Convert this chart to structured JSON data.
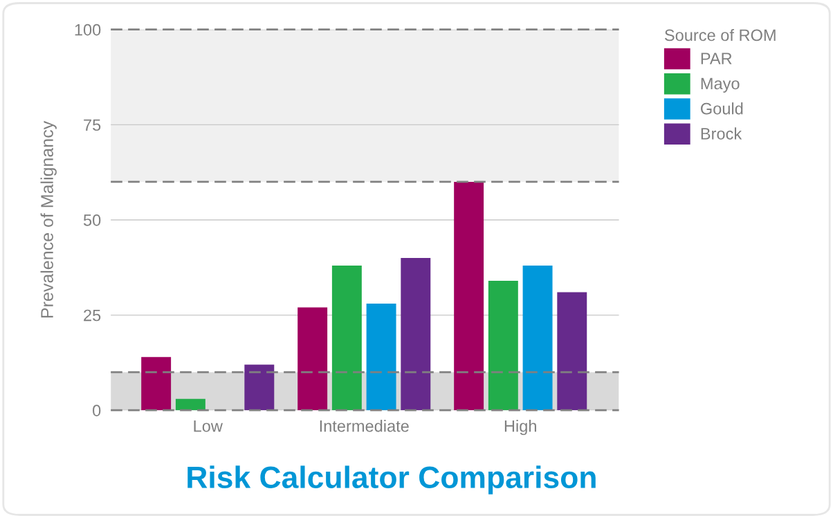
{
  "chart_data": {
    "type": "bar",
    "title": "Risk Calculator Comparison",
    "ylabel": "Prevalence of Malignancy",
    "legend_title": "Source of ROM",
    "categories": [
      "Low",
      "Intermediate",
      "High"
    ],
    "series": [
      {
        "name": "PAR",
        "color": "#a0005f",
        "values": [
          14,
          27,
          60
        ]
      },
      {
        "name": "Mayo",
        "color": "#22ad4b",
        "values": [
          3,
          38,
          34
        ]
      },
      {
        "name": "Gould",
        "color": "#0098db",
        "values": [
          0,
          28,
          38
        ]
      },
      {
        "name": "Brock",
        "color": "#662a8c",
        "values": [
          12,
          40,
          31
        ]
      }
    ],
    "ylim": [
      0,
      100
    ],
    "yticks": [
      0,
      25,
      50,
      75,
      100
    ],
    "grid": "y",
    "legend": "top right",
    "bands": [
      {
        "axis": "y",
        "from": 0,
        "to": 10,
        "color": "#d9d9d9"
      },
      {
        "axis": "y",
        "from": 60,
        "to": 100,
        "color": "#f0f0f0"
      }
    ],
    "ref_lines": [
      {
        "axis": "y",
        "value": 0,
        "color": "#808080",
        "line_style": "dashed"
      },
      {
        "axis": "y",
        "value": 10,
        "color": "#808080",
        "line_style": "dashed"
      },
      {
        "axis": "y",
        "value": 60,
        "color": "#808080",
        "line_style": "dashed"
      },
      {
        "axis": "y",
        "value": 100,
        "color": "#808080",
        "line_style": "dashed"
      }
    ]
  }
}
